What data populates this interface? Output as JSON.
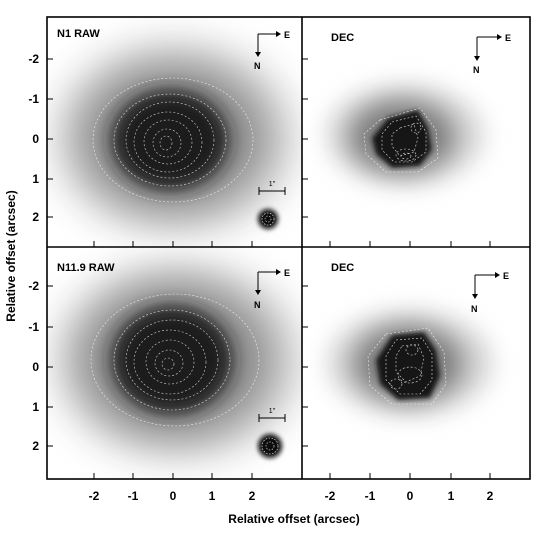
{
  "figure": {
    "xlabel": "Relative offset (arcsec)",
    "ylabel": "Relative offset (arcsec)",
    "x_ticks": [
      "-2",
      "-1",
      "0",
      "1",
      "2"
    ],
    "y_ticks": [
      "-2",
      "-1",
      "0",
      "1",
      "2"
    ],
    "compass": {
      "east": "E",
      "north": "N"
    },
    "scalebar_label": "1\"",
    "panels": [
      {
        "id": "n1-raw",
        "label": "N1 RAW",
        "kind": "raw"
      },
      {
        "id": "n1-dec",
        "label": "DEC",
        "kind": "dec"
      },
      {
        "id": "n119-raw",
        "label": "N11.9 RAW",
        "kind": "raw"
      },
      {
        "id": "n119-dec",
        "label": "DEC",
        "kind": "dec"
      }
    ]
  }
}
